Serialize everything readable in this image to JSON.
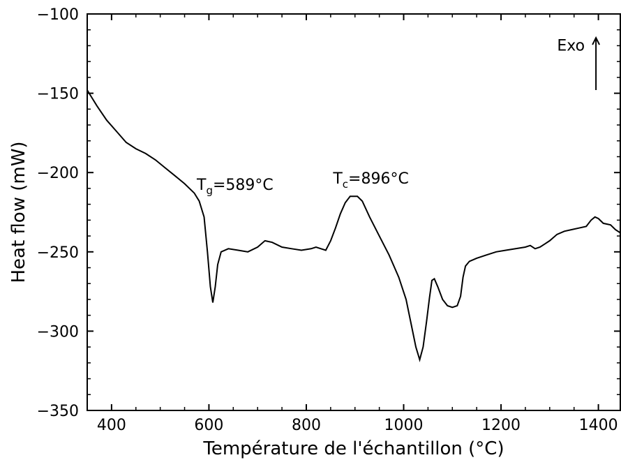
{
  "chart_data": {
    "type": "line",
    "title": "",
    "xlabel": "Température de l'échantillon (°C)",
    "ylabel": "Heat flow (mW)",
    "xlim": [
      350,
      1445
    ],
    "ylim": [
      -350,
      -100
    ],
    "grid": false,
    "legend": "none",
    "x_ticks": [
      400,
      600,
      800,
      1000,
      1200,
      1400
    ],
    "x_tick_labels": [
      "400",
      "600",
      "800",
      "1000",
      "1200",
      "1400"
    ],
    "y_ticks": [
      -100,
      -150,
      -200,
      -250,
      -300,
      -350
    ],
    "y_tick_labels": [
      "−100",
      "−150",
      "−200",
      "−250",
      "−300",
      "−350"
    ],
    "series": [
      {
        "color": "#000000",
        "points": [
          [
            350,
            -148
          ],
          [
            370,
            -158
          ],
          [
            390,
            -167
          ],
          [
            410,
            -174
          ],
          [
            430,
            -181
          ],
          [
            450,
            -185
          ],
          [
            470,
            -188
          ],
          [
            490,
            -192
          ],
          [
            510,
            -197
          ],
          [
            530,
            -202
          ],
          [
            550,
            -207
          ],
          [
            570,
            -213
          ],
          [
            580,
            -218
          ],
          [
            590,
            -228
          ],
          [
            597,
            -250
          ],
          [
            603,
            -272
          ],
          [
            608,
            -282
          ],
          [
            613,
            -272
          ],
          [
            618,
            -258
          ],
          [
            625,
            -250
          ],
          [
            640,
            -248
          ],
          [
            660,
            -249
          ],
          [
            680,
            -250
          ],
          [
            700,
            -247
          ],
          [
            715,
            -243
          ],
          [
            730,
            -244
          ],
          [
            750,
            -247
          ],
          [
            770,
            -248
          ],
          [
            790,
            -249
          ],
          [
            810,
            -248
          ],
          [
            820,
            -247
          ],
          [
            830,
            -248
          ],
          [
            840,
            -249
          ],
          [
            850,
            -243
          ],
          [
            860,
            -235
          ],
          [
            870,
            -226
          ],
          [
            880,
            -219
          ],
          [
            890,
            -215
          ],
          [
            905,
            -215
          ],
          [
            915,
            -218
          ],
          [
            930,
            -228
          ],
          [
            950,
            -240
          ],
          [
            970,
            -252
          ],
          [
            990,
            -266
          ],
          [
            1005,
            -280
          ],
          [
            1015,
            -295
          ],
          [
            1025,
            -310
          ],
          [
            1033,
            -318
          ],
          [
            1040,
            -310
          ],
          [
            1047,
            -294
          ],
          [
            1053,
            -279
          ],
          [
            1058,
            -268
          ],
          [
            1063,
            -267
          ],
          [
            1070,
            -272
          ],
          [
            1080,
            -280
          ],
          [
            1090,
            -284
          ],
          [
            1100,
            -285
          ],
          [
            1110,
            -284
          ],
          [
            1117,
            -278
          ],
          [
            1122,
            -266
          ],
          [
            1127,
            -259
          ],
          [
            1135,
            -256
          ],
          [
            1150,
            -254
          ],
          [
            1170,
            -252
          ],
          [
            1190,
            -250
          ],
          [
            1210,
            -249
          ],
          [
            1230,
            -248
          ],
          [
            1250,
            -247
          ],
          [
            1260,
            -246
          ],
          [
            1270,
            -248
          ],
          [
            1280,
            -247
          ],
          [
            1290,
            -245
          ],
          [
            1300,
            -243
          ],
          [
            1315,
            -239
          ],
          [
            1330,
            -237
          ],
          [
            1345,
            -236
          ],
          [
            1360,
            -235
          ],
          [
            1375,
            -234
          ],
          [
            1385,
            -230
          ],
          [
            1393,
            -228
          ],
          [
            1400,
            -229
          ],
          [
            1410,
            -232
          ],
          [
            1425,
            -233
          ],
          [
            1435,
            -236
          ],
          [
            1445,
            -238
          ]
        ]
      }
    ],
    "annotations": {
      "tg": {
        "main": "T",
        "sub": "g",
        "rest": "=589°C",
        "x": 575,
        "y": -211
      },
      "tc": {
        "main": "T",
        "sub": "c",
        "rest": "=896°C",
        "x": 855,
        "y": -207
      },
      "exo": {
        "label": "Exo",
        "x": 1395,
        "y_from": -148,
        "y_to": -115
      }
    }
  }
}
